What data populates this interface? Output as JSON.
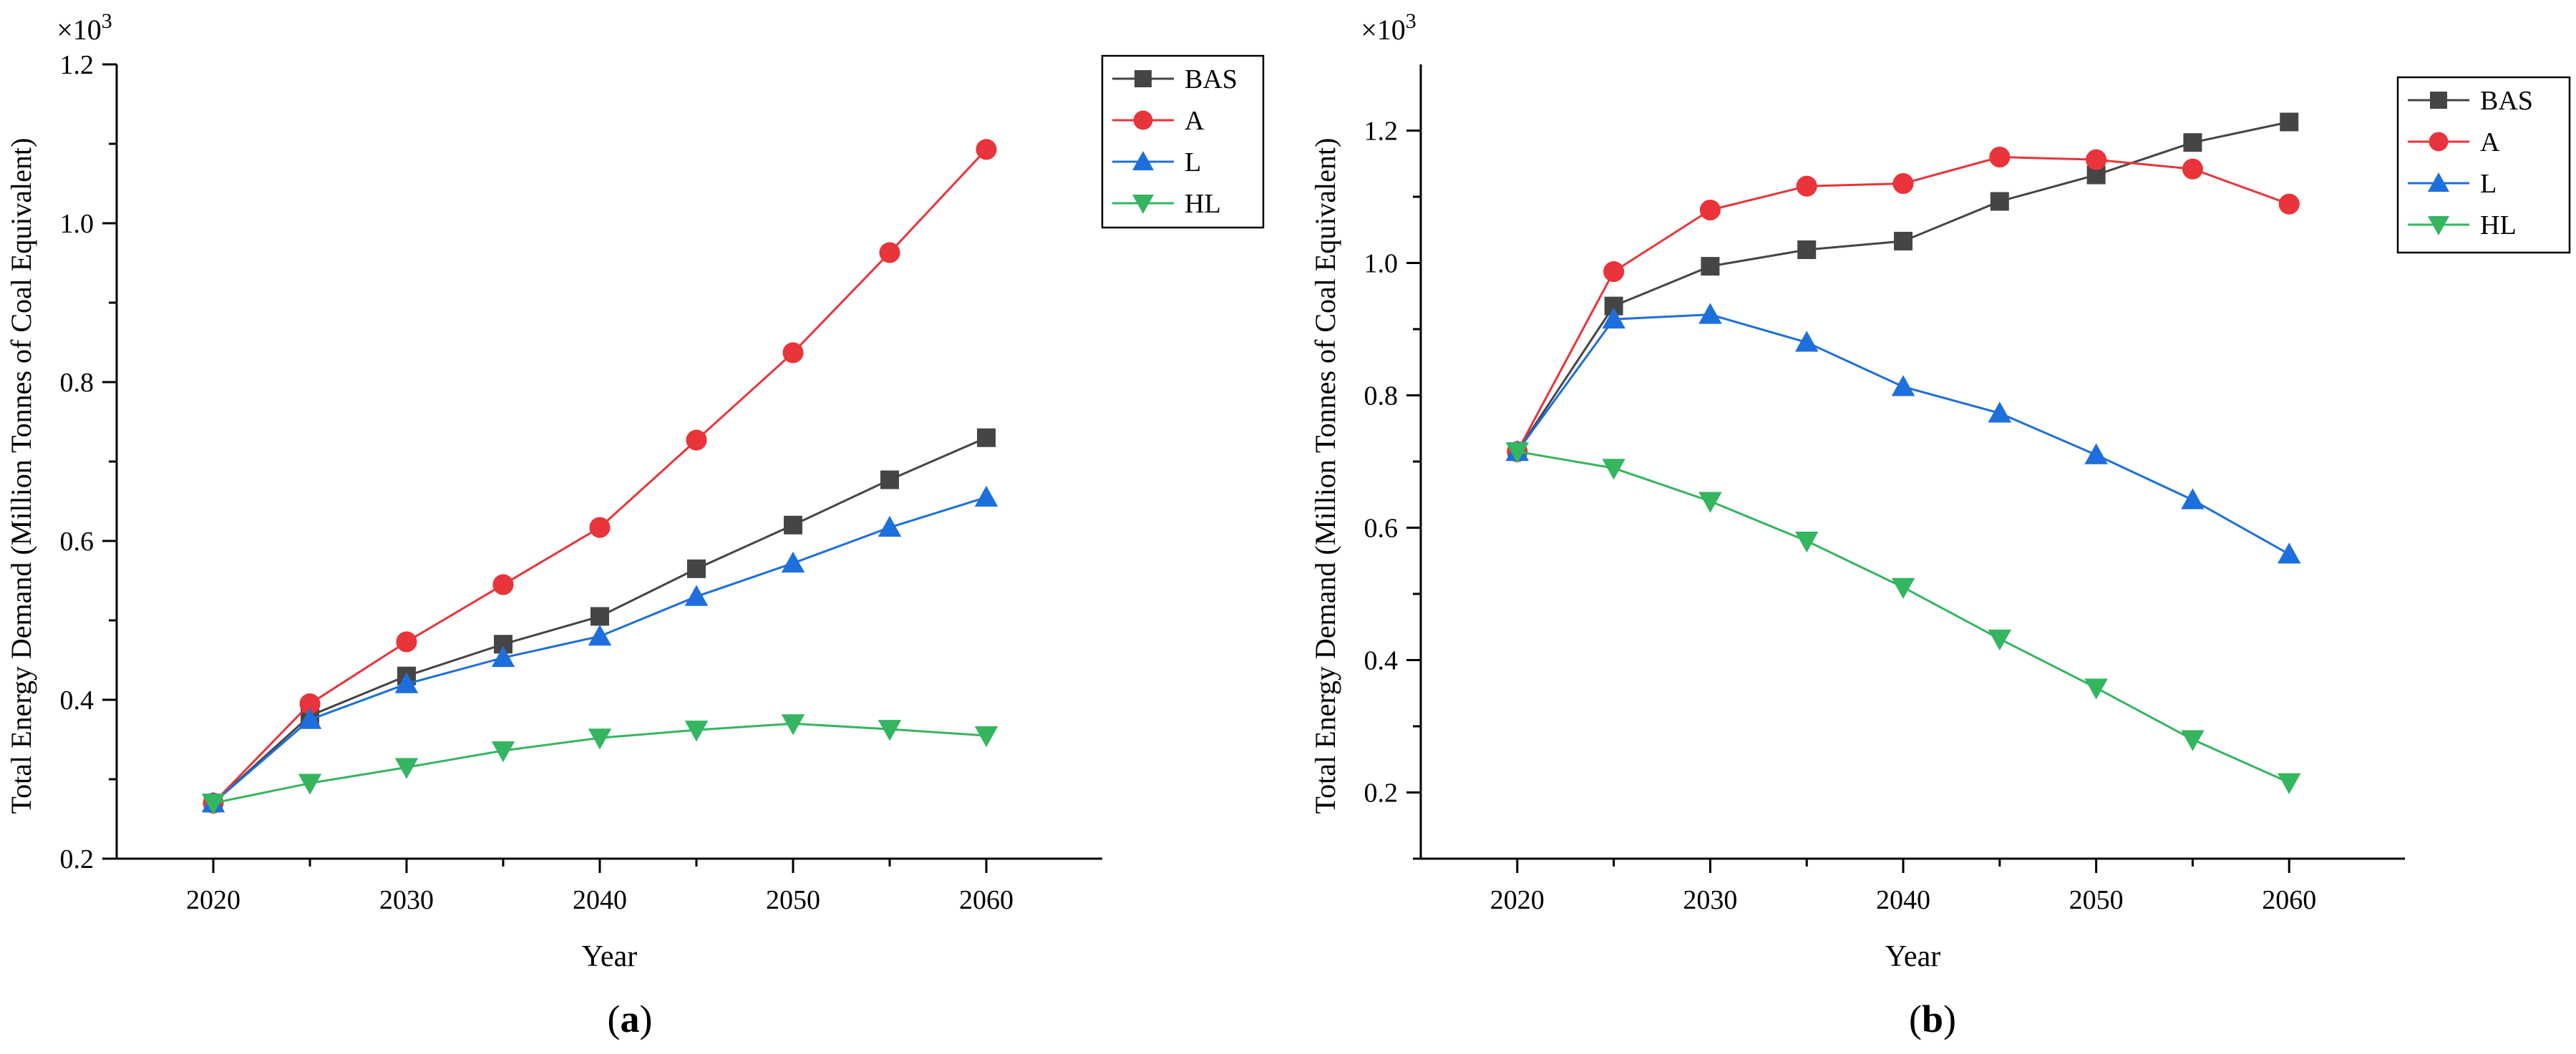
{
  "chart_data": [
    {
      "type": "line",
      "panel_label": {
        "open": "(",
        "letter": "a",
        "close": ")"
      },
      "xlabel": "Year",
      "ylabel": "Total Energy Demand (Million Tonnes of Coal Equivalent)",
      "y_multiplier": "×10",
      "y_multiplier_exp": "3",
      "xlim": [
        2015,
        2066
      ],
      "ylim": [
        0.2,
        1.2
      ],
      "xticks": [
        2020,
        2030,
        2040,
        2050,
        2060
      ],
      "xtick_labels": [
        "2020",
        "2030",
        "2040",
        "2050",
        "2060"
      ],
      "yticks": [
        0.2,
        0.4,
        0.6,
        0.8,
        1.0,
        1.2
      ],
      "ytick_labels": [
        "0.2",
        "0.4",
        "0.6",
        "0.8",
        "1.0",
        "1.2"
      ],
      "x": [
        2020,
        2025,
        2030,
        2035,
        2040,
        2045,
        2050,
        2055,
        2060
      ],
      "legend_position": "top-right",
      "series": [
        {
          "name": "BAS",
          "marker": "square",
          "color": "#454545",
          "values": [
            0.27,
            0.38,
            0.43,
            0.47,
            0.505,
            0.565,
            0.62,
            0.677,
            0.73
          ]
        },
        {
          "name": "A",
          "marker": "circle",
          "color": "#e8343a",
          "values": [
            0.27,
            0.395,
            0.473,
            0.545,
            0.617,
            0.727,
            0.837,
            0.963,
            1.093
          ]
        },
        {
          "name": "L",
          "marker": "triangle-up",
          "color": "#1d6fdd",
          "values": [
            0.27,
            0.375,
            0.42,
            0.453,
            0.48,
            0.53,
            0.572,
            0.617,
            0.655
          ]
        },
        {
          "name": "HL",
          "marker": "triangle-down",
          "color": "#34b560",
          "values": [
            0.27,
            0.295,
            0.315,
            0.336,
            0.352,
            0.362,
            0.37,
            0.363,
            0.355
          ]
        }
      ]
    },
    {
      "type": "line",
      "panel_label": {
        "open": "(",
        "letter": "b",
        "close": ")"
      },
      "xlabel": "Year",
      "ylabel": "Total Energy Demand (Million Tonnes of Coal Equivalent)",
      "y_multiplier": "×10",
      "y_multiplier_exp": "3",
      "xlim": [
        2015,
        2066
      ],
      "ylim": [
        0.1,
        1.3
      ],
      "xticks": [
        2020,
        2030,
        2040,
        2050,
        2060
      ],
      "xtick_labels": [
        "2020",
        "2030",
        "2040",
        "2050",
        "2060"
      ],
      "yticks": [
        0.2,
        0.4,
        0.6,
        0.8,
        1.0,
        1.2
      ],
      "ytick_labels": [
        "0.2",
        "0.4",
        "0.6",
        "0.8",
        "1.0",
        "1.2"
      ],
      "x": [
        2020,
        2025,
        2030,
        2035,
        2040,
        2045,
        2050,
        2055,
        2060
      ],
      "legend_position": "top-right",
      "series": [
        {
          "name": "BAS",
          "marker": "square",
          "color": "#454545",
          "values": [
            0.715,
            0.935,
            0.995,
            1.02,
            1.033,
            1.093,
            1.133,
            1.182,
            1.213
          ]
        },
        {
          "name": "A",
          "marker": "circle",
          "color": "#e8343a",
          "values": [
            0.715,
            0.987,
            1.08,
            1.116,
            1.12,
            1.16,
            1.156,
            1.142,
            1.089
          ]
        },
        {
          "name": "L",
          "marker": "triangle-up",
          "color": "#1d6fdd",
          "values": [
            0.715,
            0.915,
            0.922,
            0.88,
            0.813,
            0.773,
            0.71,
            0.642,
            0.56
          ]
        },
        {
          "name": "HL",
          "marker": "triangle-down",
          "color": "#34b560",
          "values": [
            0.715,
            0.69,
            0.64,
            0.58,
            0.51,
            0.432,
            0.358,
            0.28,
            0.215
          ]
        }
      ]
    }
  ]
}
